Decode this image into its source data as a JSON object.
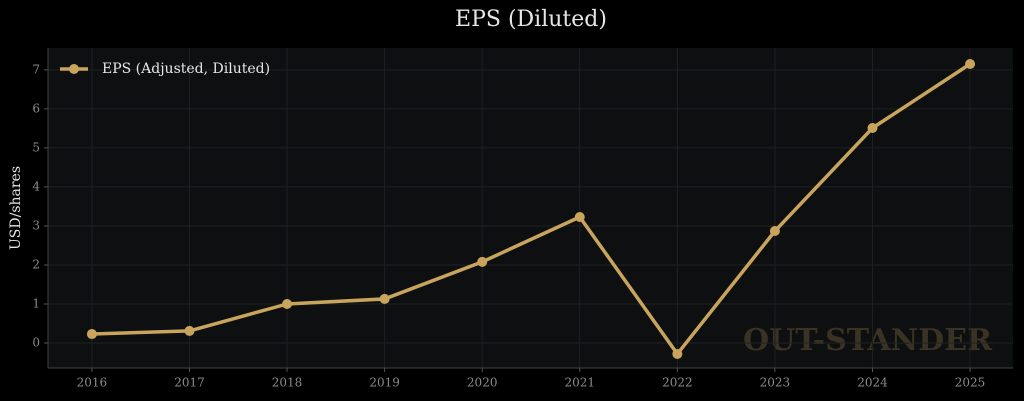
{
  "chart_data": {
    "type": "line",
    "title": "EPS (Diluted)",
    "ylabel": "USD/shares",
    "watermark": "OUT-STANDER",
    "x": [
      2016,
      2017,
      2018,
      2019,
      2020,
      2021,
      2022,
      2023,
      2024,
      2025
    ],
    "series": [
      {
        "name": "EPS (Adjusted, Diluted)",
        "color": "#c9a45c",
        "values": [
          0.23,
          0.31,
          1.0,
          1.13,
          2.08,
          3.23,
          -0.28,
          2.87,
          5.51,
          7.15
        ]
      }
    ],
    "xlim": [
      2015.55,
      2025.44
    ],
    "xticks": [
      2016,
      2017,
      2018,
      2019,
      2020,
      2021,
      2022,
      2023,
      2024,
      2025
    ],
    "ylim": [
      -0.64,
      7.56
    ],
    "yticks": [
      0,
      1,
      2,
      3,
      4,
      5,
      6,
      7
    ],
    "grid": true,
    "legend": "upper-left"
  }
}
